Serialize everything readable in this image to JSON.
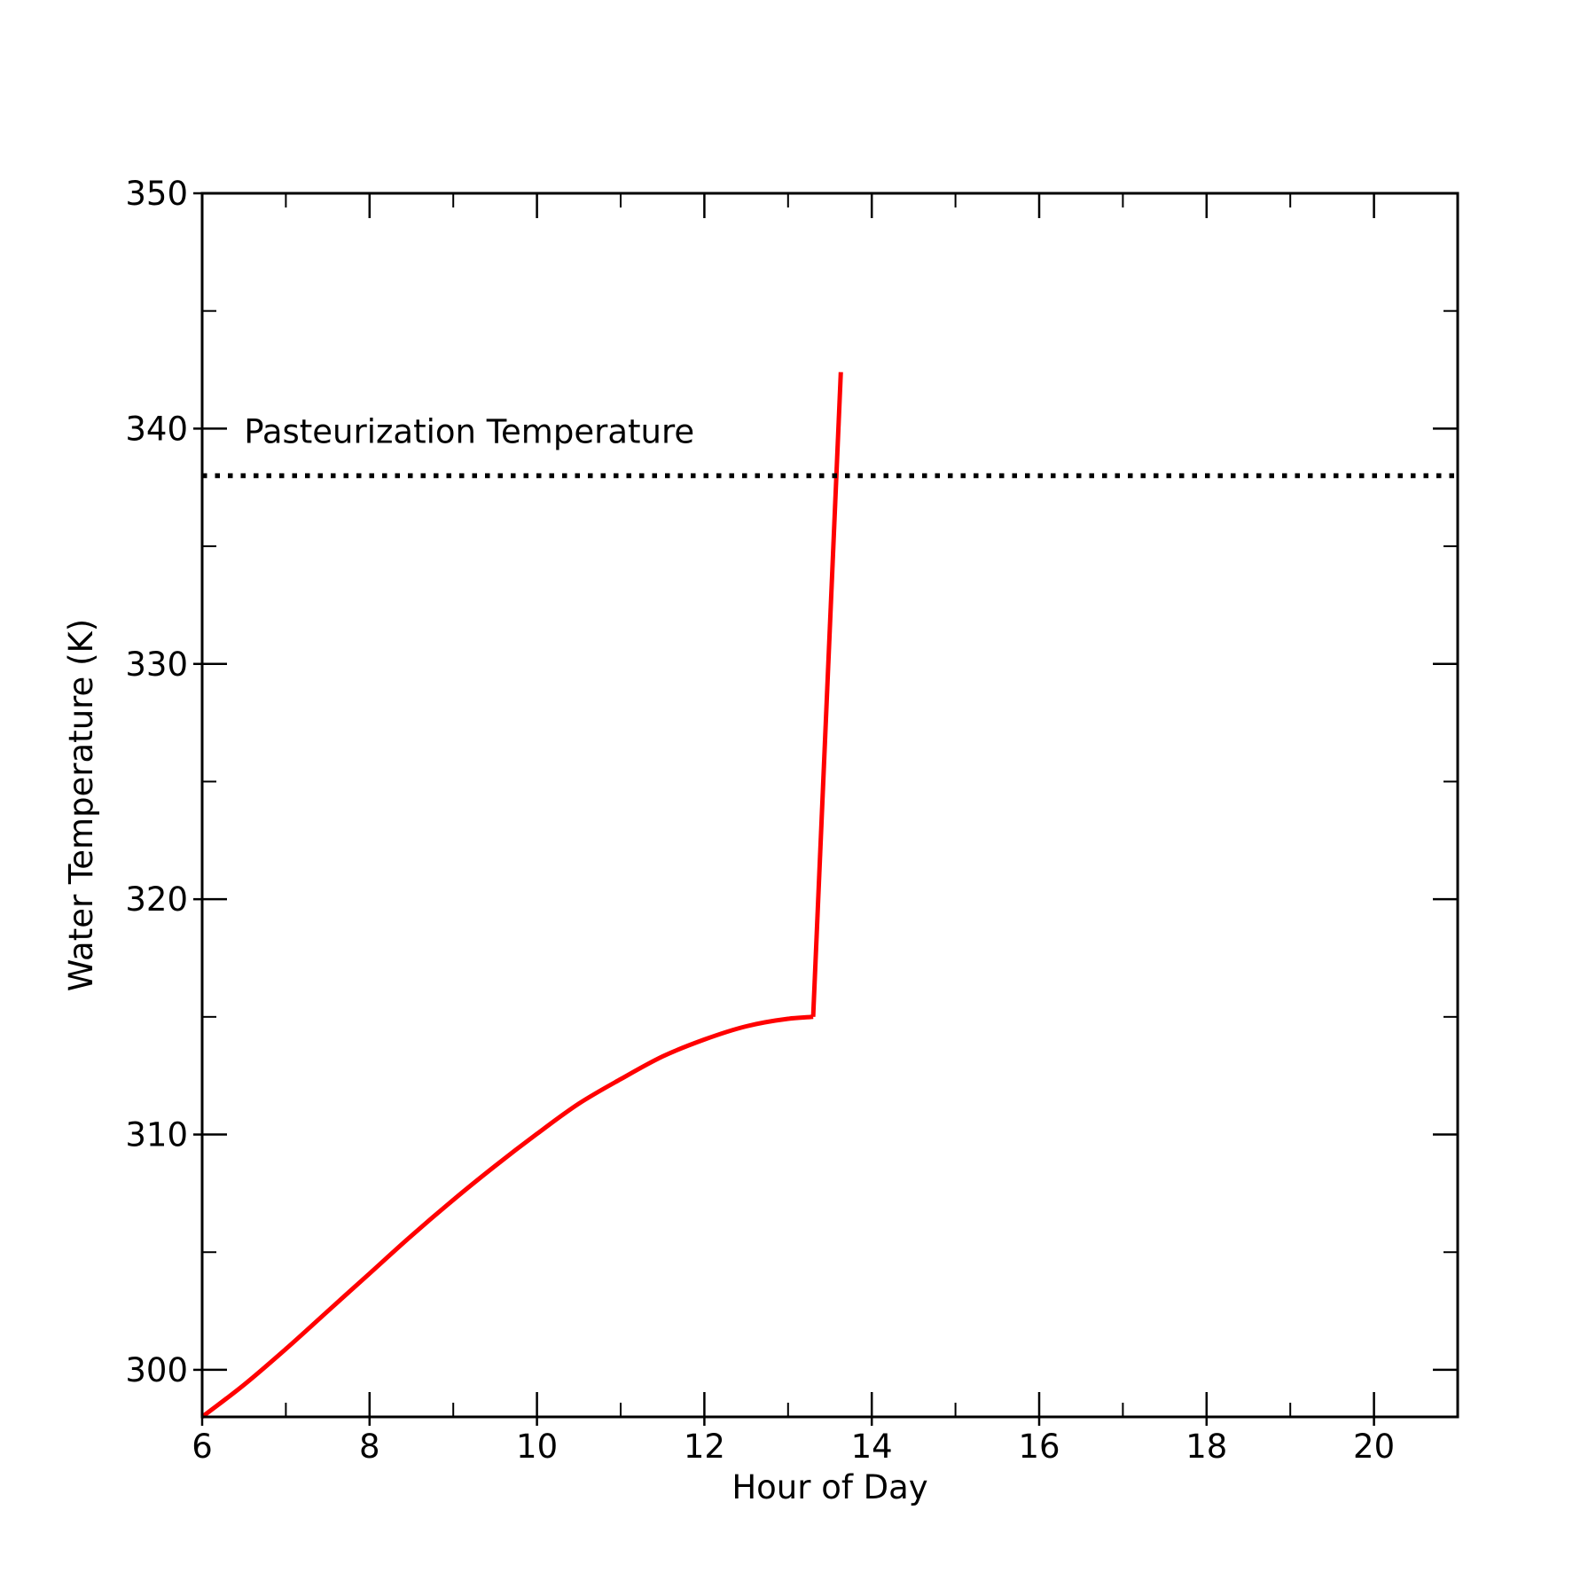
{
  "chart_data": {
    "type": "line",
    "title": "",
    "xlabel": "Hour of Day",
    "ylabel": "Water Temperature (K)",
    "xlim": [
      6,
      21
    ],
    "ylim": [
      298,
      350
    ],
    "x_ticks": [
      6,
      8,
      10,
      12,
      14,
      16,
      18,
      20
    ],
    "x_minor_ticks": [
      7,
      9,
      11,
      13,
      15,
      17,
      19,
      21
    ],
    "y_ticks": [
      300,
      310,
      320,
      330,
      340,
      350
    ],
    "y_minor_ticks": [
      305,
      315,
      325,
      335,
      345
    ],
    "grid": false,
    "legend": "none",
    "series": [
      {
        "color": "#ff0000",
        "style": "solid",
        "x": [
          6.0,
          6.5,
          7.0,
          7.5,
          8.0,
          8.5,
          9.0,
          9.5,
          10.0,
          10.5,
          11.0,
          11.5,
          12.0,
          12.5,
          13.0,
          13.3
        ],
        "y": [
          298.0,
          299.7,
          301.6,
          303.6,
          305.6,
          307.6,
          309.5,
          311.3,
          313.0,
          314.6,
          315.9,
          317.1,
          318.0,
          318.7,
          319.1,
          319.2
        ]
      },
      {
        "color": "#ff0000",
        "style": "solid",
        "x": [
          13.3,
          13.63
        ],
        "y": [
          315.0,
          342.4
        ]
      }
    ],
    "reference_lines": [
      {
        "y": 338,
        "style": "dotted",
        "color": "#000000",
        "label": "Pasteurization Temperature"
      }
    ]
  }
}
